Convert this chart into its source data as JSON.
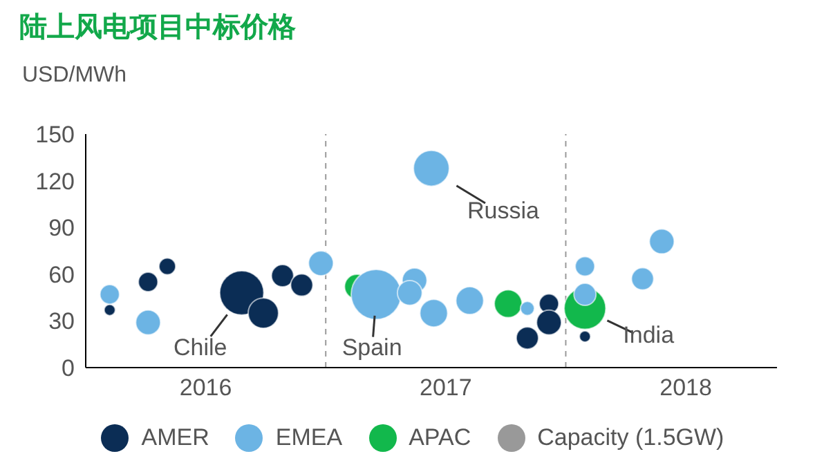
{
  "chart_data": {
    "type": "bubble",
    "title": "陆上风电项目中标价格",
    "ylabel": "USD/MWh",
    "xlim": [
      2016,
      2018.88
    ],
    "xticks": [
      {
        "value": 2016.5,
        "label": "2016"
      },
      {
        "value": 2017.5,
        "label": "2017"
      },
      {
        "value": 2018.5,
        "label": "2018"
      }
    ],
    "ylim": [
      0,
      150
    ],
    "yticks": [
      0,
      30,
      60,
      90,
      120,
      150
    ],
    "grid": false,
    "legend": "bottom",
    "size_legend": [
      {
        "value": 1.5,
        "label": "Capacity (1.5GW)"
      }
    ],
    "ref_lines": [
      {
        "axis": "x",
        "value": 2017,
        "color": "#999999",
        "line_style": "dashed"
      },
      {
        "axis": "x",
        "value": 2018,
        "color": "#999999",
        "line_style": "dashed"
      }
    ],
    "annotations": [
      {
        "text": "Chile",
        "x": 2016.65,
        "y": 48
      },
      {
        "text": "Spain",
        "x": 2017.21,
        "y": 47
      },
      {
        "text": "Russia",
        "x": 2017.44,
        "y": 128
      },
      {
        "text": "India",
        "x": 2018.08,
        "y": 38
      }
    ],
    "series": [
      {
        "name": "AMER",
        "color": "#0b2d55",
        "x": [
          2016.1,
          2016.26,
          2016.34,
          2016.65,
          2016.74,
          2016.82,
          2016.9,
          2017.84,
          2017.93,
          2017.93,
          2018.08
        ],
        "values": [
          37,
          55,
          65,
          48,
          35,
          59,
          53,
          19,
          41,
          29,
          20
        ],
        "sizes": [
          0.24,
          0.74,
          0.54,
          3.8,
          1.8,
          0.96,
          0.96,
          0.96,
          0.74,
          1.2,
          0.24
        ]
      },
      {
        "name": "EMEA",
        "color": "#6cb4e4",
        "x": [
          2016.1,
          2016.26,
          2016.98,
          2017.21,
          2017.44,
          2017.37,
          2017.35,
          2017.45,
          2017.6,
          2017.84,
          2018.08,
          2018.08,
          2018.32,
          2018.4
        ],
        "values": [
          47,
          29,
          67,
          47,
          128,
          56,
          48,
          35,
          43,
          38,
          47,
          65,
          57,
          81
        ],
        "sizes": [
          0.74,
          1.2,
          1.2,
          4.9,
          2.5,
          1.2,
          1.2,
          1.5,
          1.5,
          0.38,
          0.96,
          0.74,
          0.96,
          1.2
        ]
      },
      {
        "name": "APAC",
        "color": "#12b84c",
        "x": [
          2017.13,
          2017.76,
          2018.08
        ],
        "values": [
          52,
          41,
          38
        ],
        "sizes": [
          1.2,
          1.5,
          3.4
        ]
      }
    ]
  }
}
